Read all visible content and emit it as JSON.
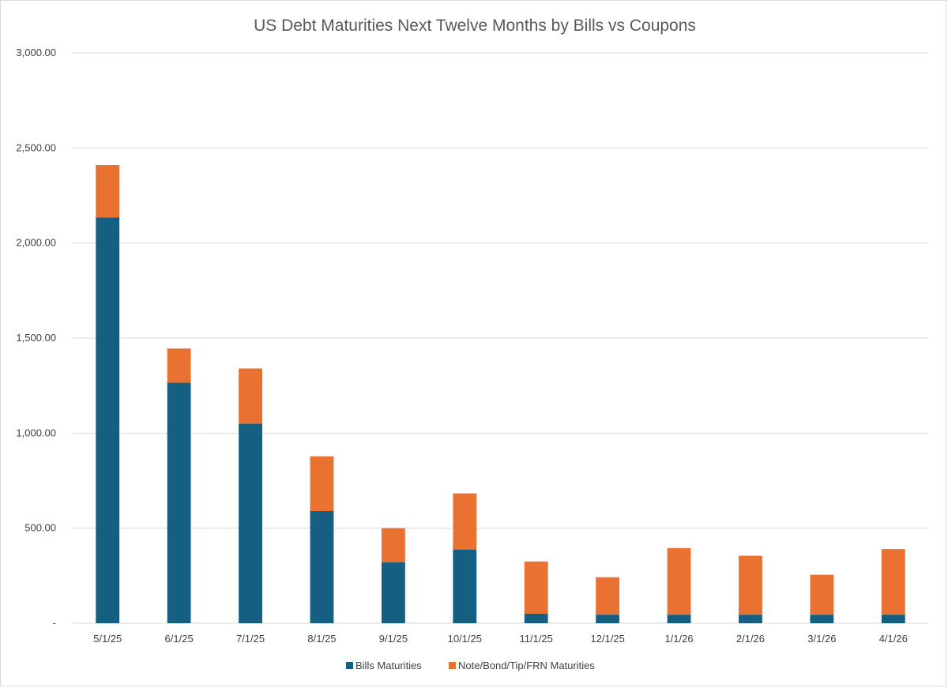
{
  "chart_data": {
    "type": "bar",
    "stacked": true,
    "title": "US Debt Maturities Next Twelve Months by Bills vs Coupons",
    "xlabel": "",
    "ylabel": "",
    "ylim": [
      0,
      3000
    ],
    "yticks": [
      0,
      500,
      1000,
      1500,
      2000,
      2500,
      3000
    ],
    "ytick_labels": [
      "-",
      "500.00",
      "1,000.00",
      "1,500.00",
      "2,000.00",
      "2,500.00",
      "3,000.00"
    ],
    "grid": true,
    "legend_position": "bottom",
    "categories": [
      "5/1/25",
      "6/1/25",
      "7/1/25",
      "8/1/25",
      "9/1/25",
      "10/1/25",
      "11/1/25",
      "12/1/25",
      "1/1/26",
      "2/1/26",
      "3/1/26",
      "4/1/26"
    ],
    "series": [
      {
        "name": "Bills Maturities",
        "color": "#156082",
        "values": [
          2135,
          1265,
          1050,
          590,
          320,
          388,
          50,
          45,
          45,
          45,
          45,
          45
        ]
      },
      {
        "name": "Note/Bond/Tip/FRN Maturities",
        "color": "#E97132",
        "values": [
          275,
          180,
          290,
          288,
          180,
          295,
          275,
          197,
          350,
          310,
          210,
          345
        ]
      }
    ]
  }
}
